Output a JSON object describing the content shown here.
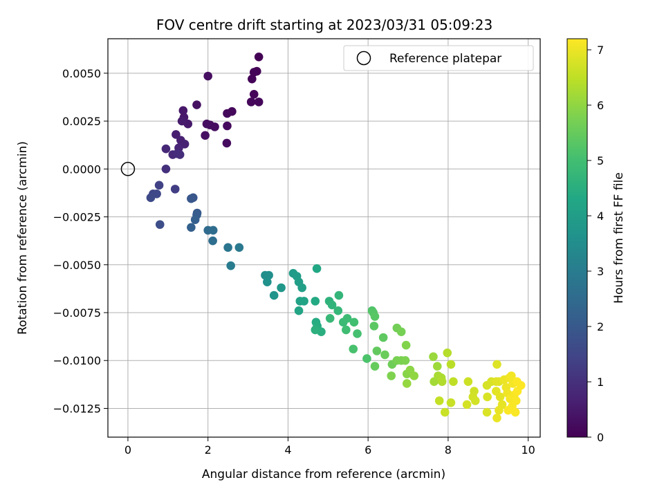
{
  "chart_data": {
    "type": "scatter",
    "title": "FOV centre drift starting at 2023/03/31 05:09:23",
    "xlabel": "Angular distance from reference (arcmin)",
    "ylabel": "Rotation from reference (arcmin)",
    "colorbar_label": "Hours from first FF file",
    "xlim": [
      -0.5,
      10.3
    ],
    "ylim": [
      -0.014,
      0.0068
    ],
    "clim": [
      0,
      7.2
    ],
    "xticks": [
      0,
      2,
      4,
      6,
      8,
      10
    ],
    "xtick_labels": [
      "0",
      "2",
      "4",
      "6",
      "8",
      "10"
    ],
    "yticks": [
      0.005,
      0.0025,
      0,
      -0.0025,
      -0.005,
      -0.0075,
      -0.01,
      -0.0125
    ],
    "ytick_labels": [
      "0.0050",
      "0.0025",
      "0.0000",
      "−0.0025",
      "−0.0050",
      "−0.0075",
      "−0.0100",
      "−0.0125"
    ],
    "cticks": [
      0,
      1,
      2,
      3,
      4,
      5,
      6,
      7
    ],
    "ctick_labels": [
      "0",
      "1",
      "2",
      "3",
      "4",
      "5",
      "6",
      "7"
    ],
    "colormap": "viridis",
    "grid": true,
    "legend": {
      "position": "top-right",
      "entries": [
        "Reference platepar"
      ]
    },
    "reference_point": [
      0,
      0
    ],
    "points": [
      [
        3.27,
        0.00585,
        0.03
      ],
      [
        3.22,
        0.0051,
        0.05
      ],
      [
        3.15,
        0.00505,
        0.07
      ],
      [
        3.1,
        0.0047,
        0.08
      ],
      [
        3.15,
        0.0039,
        0.1
      ],
      [
        3.27,
        0.0035,
        0.12
      ],
      [
        3.08,
        0.0035,
        0.13
      ],
      [
        2.6,
        0.003,
        0.15
      ],
      [
        2.48,
        0.0029,
        0.17
      ],
      [
        2.48,
        0.00225,
        0.19
      ],
      [
        2.47,
        0.00135,
        0.21
      ],
      [
        2.17,
        0.0022,
        0.23
      ],
      [
        2.05,
        0.0023,
        0.25
      ],
      [
        1.97,
        0.00235,
        0.27
      ],
      [
        2.0,
        0.00485,
        0.29
      ],
      [
        1.93,
        0.00175,
        0.31
      ],
      [
        1.72,
        0.00335,
        0.33
      ],
      [
        1.38,
        0.00305,
        0.45
      ],
      [
        1.4,
        0.0027,
        0.48
      ],
      [
        1.5,
        0.00235,
        0.5
      ],
      [
        1.35,
        0.0025,
        0.55
      ],
      [
        1.2,
        0.0018,
        0.6
      ],
      [
        1.32,
        0.0015,
        0.65
      ],
      [
        1.42,
        0.0013,
        0.7
      ],
      [
        1.27,
        0.0011,
        0.75
      ],
      [
        0.95,
        0.00105,
        0.8
      ],
      [
        1.12,
        0.00075,
        0.85
      ],
      [
        1.23,
        0.0008,
        0.9
      ],
      [
        1.3,
        0.00075,
        0.95
      ],
      [
        0.95,
        0.0,
        1.0
      ],
      [
        1.18,
        -0.00105,
        1.3
      ],
      [
        0.78,
        -0.00085,
        1.4
      ],
      [
        0.63,
        -0.0013,
        1.5
      ],
      [
        0.72,
        -0.0013,
        1.55
      ],
      [
        0.57,
        -0.0015,
        1.6
      ],
      [
        0.8,
        -0.0029,
        1.7
      ],
      [
        1.63,
        -0.0015,
        1.9
      ],
      [
        1.58,
        -0.00155,
        1.95
      ],
      [
        1.73,
        -0.0023,
        2.0
      ],
      [
        1.72,
        -0.0024,
        2.1
      ],
      [
        1.68,
        -0.00265,
        2.15
      ],
      [
        1.58,
        -0.00305,
        2.2
      ],
      [
        2.0,
        -0.0032,
        2.5
      ],
      [
        2.13,
        -0.0032,
        2.55
      ],
      [
        2.12,
        -0.00375,
        2.6
      ],
      [
        2.5,
        -0.0041,
        2.8
      ],
      [
        2.78,
        -0.0041,
        2.9
      ],
      [
        2.57,
        -0.00505,
        3.0
      ],
      [
        3.43,
        -0.00555,
        3.5
      ],
      [
        3.52,
        -0.00555,
        3.55
      ],
      [
        3.48,
        -0.0059,
        3.6
      ],
      [
        3.65,
        -0.0066,
        3.7
      ],
      [
        3.83,
        -0.0062,
        3.8
      ],
      [
        4.13,
        -0.00545,
        3.9
      ],
      [
        4.22,
        -0.0056,
        3.95
      ],
      [
        4.27,
        -0.0059,
        4.0
      ],
      [
        4.35,
        -0.0062,
        4.05
      ],
      [
        4.3,
        -0.0069,
        4.1
      ],
      [
        4.4,
        -0.0069,
        4.15
      ],
      [
        4.27,
        -0.0074,
        4.2
      ],
      [
        4.72,
        -0.0052,
        4.3
      ],
      [
        4.68,
        -0.0069,
        4.35
      ],
      [
        4.7,
        -0.008,
        4.4
      ],
      [
        4.73,
        -0.0082,
        4.45
      ],
      [
        4.83,
        -0.0085,
        4.5
      ],
      [
        4.68,
        -0.0084,
        4.55
      ],
      [
        5.03,
        -0.0069,
        4.6
      ],
      [
        5.1,
        -0.0071,
        4.65
      ],
      [
        5.27,
        -0.0066,
        4.7
      ],
      [
        5.25,
        -0.0074,
        4.75
      ],
      [
        5.05,
        -0.0078,
        4.8
      ],
      [
        5.38,
        -0.008,
        4.85
      ],
      [
        5.48,
        -0.0078,
        4.9
      ],
      [
        5.45,
        -0.0084,
        4.95
      ],
      [
        5.65,
        -0.008,
        5.0
      ],
      [
        5.73,
        -0.0086,
        5.05
      ],
      [
        5.63,
        -0.0094,
        5.1
      ],
      [
        5.97,
        -0.0099,
        5.15
      ],
      [
        6.1,
        -0.0074,
        5.2
      ],
      [
        6.13,
        -0.0075,
        5.25
      ],
      [
        6.17,
        -0.0077,
        5.3
      ],
      [
        6.15,
        -0.0082,
        5.35
      ],
      [
        6.38,
        -0.0088,
        5.4
      ],
      [
        6.22,
        -0.0095,
        5.45
      ],
      [
        6.17,
        -0.0103,
        5.5
      ],
      [
        6.42,
        -0.0097,
        5.55
      ],
      [
        6.6,
        -0.0102,
        5.6
      ],
      [
        6.72,
        -0.0083,
        5.65
      ],
      [
        6.83,
        -0.0085,
        5.7
      ],
      [
        6.72,
        -0.01,
        5.72
      ],
      [
        6.83,
        -0.01,
        5.75
      ],
      [
        6.93,
        -0.01,
        5.78
      ],
      [
        6.58,
        -0.0108,
        5.8
      ],
      [
        6.95,
        -0.0092,
        5.85
      ],
      [
        6.97,
        -0.0107,
        5.9
      ],
      [
        7.05,
        -0.0105,
        5.95
      ],
      [
        7.15,
        -0.0108,
        6.0
      ],
      [
        6.97,
        -0.0112,
        6.05
      ],
      [
        7.63,
        -0.0098,
        6.1
      ],
      [
        7.73,
        -0.0103,
        6.15
      ],
      [
        7.65,
        -0.0111,
        6.2
      ],
      [
        7.75,
        -0.0108,
        6.25
      ],
      [
        7.83,
        -0.0109,
        6.3
      ],
      [
        7.85,
        -0.0111,
        6.35
      ],
      [
        7.98,
        -0.0096,
        6.4
      ],
      [
        8.07,
        -0.0102,
        6.45
      ],
      [
        8.13,
        -0.0111,
        6.5
      ],
      [
        7.78,
        -0.0121,
        6.55
      ],
      [
        8.07,
        -0.0122,
        6.6
      ],
      [
        7.92,
        -0.0127,
        6.62
      ],
      [
        8.5,
        -0.0111,
        6.65
      ],
      [
        8.65,
        -0.0116,
        6.68
      ],
      [
        8.62,
        -0.0119,
        6.7
      ],
      [
        8.68,
        -0.0121,
        6.72
      ],
      [
        8.47,
        -0.0123,
        6.74
      ],
      [
        8.97,
        -0.0113,
        6.76
      ],
      [
        9.08,
        -0.0111,
        6.78
      ],
      [
        8.98,
        -0.0119,
        6.8
      ],
      [
        8.97,
        -0.0127,
        6.82
      ],
      [
        9.22,
        -0.0102,
        6.84
      ],
      [
        9.2,
        -0.0111,
        6.86
      ],
      [
        9.27,
        -0.0111,
        6.88
      ],
      [
        9.2,
        -0.0116,
        6.9
      ],
      [
        9.3,
        -0.0119,
        6.92
      ],
      [
        9.35,
        -0.0123,
        6.94
      ],
      [
        9.27,
        -0.0126,
        6.96
      ],
      [
        9.22,
        -0.013,
        6.98
      ],
      [
        9.4,
        -0.011,
        7.0
      ],
      [
        9.45,
        -0.0114,
        7.02
      ],
      [
        9.48,
        -0.0117,
        7.04
      ],
      [
        9.53,
        -0.0109,
        7.06
      ],
      [
        9.58,
        -0.0108,
        7.08
      ],
      [
        9.62,
        -0.0112,
        7.1
      ],
      [
        9.55,
        -0.012,
        7.12
      ],
      [
        9.65,
        -0.0118,
        7.14
      ],
      [
        9.7,
        -0.0121,
        7.15
      ],
      [
        9.6,
        -0.0124,
        7.16
      ],
      [
        9.68,
        -0.0127,
        7.17
      ],
      [
        9.5,
        -0.0126,
        7.18
      ],
      [
        9.72,
        -0.0111,
        7.19
      ],
      [
        9.82,
        -0.0113,
        7.2
      ],
      [
        9.73,
        -0.0116,
        7.2
      ]
    ]
  }
}
